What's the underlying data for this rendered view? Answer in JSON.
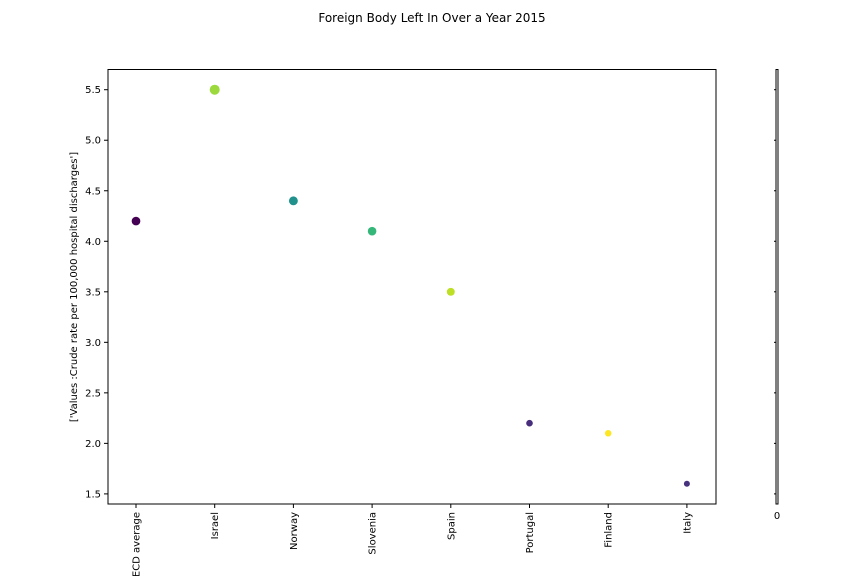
{
  "chart_data": {
    "type": "scatter",
    "title": "Foreign Body Left In Over a Year 2015",
    "xlabel": "",
    "ylabel": "['Values :Crude rate per 100,000 hospital discharges']",
    "categories": [
      "OECD average",
      "Israel",
      "Norway",
      "Slovenia",
      "Spain",
      "Portugal",
      "Finland",
      "Italy"
    ],
    "values": [
      4.2,
      5.5,
      4.4,
      4.1,
      3.5,
      2.2,
      2.1,
      1.6
    ],
    "point_colors": [
      "#440154",
      "#9bd93c",
      "#21918c",
      "#35b779",
      "#bddf26",
      "#472d7b",
      "#fde725",
      "#46327e"
    ],
    "ylim": [
      1.4,
      5.7
    ],
    "yticks": [
      "1.5",
      "2.0",
      "2.5",
      "3.0",
      "3.5",
      "4.0",
      "4.5",
      "5.0",
      "5.5"
    ],
    "colorbar_tick": "0",
    "grid": false
  }
}
